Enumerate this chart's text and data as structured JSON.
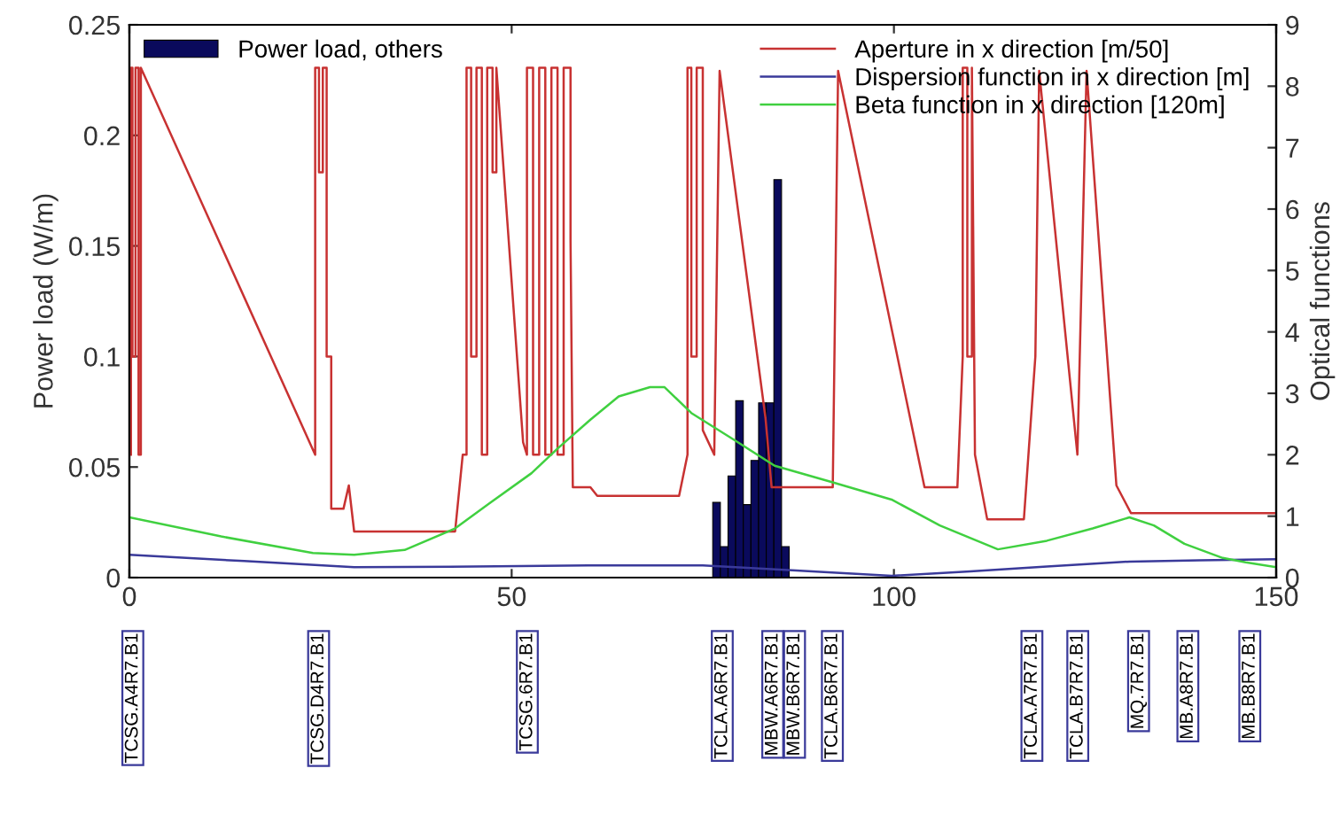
{
  "chart_data": {
    "type": "histogram",
    "ylabel": "Power load (W/m)",
    "y2label": "Optical functions",
    "bins": [
      76.3,
      77.3,
      78.3,
      79.3,
      80.3,
      81.3,
      82.3,
      83.3,
      84.3,
      85.3,
      86.3
    ],
    "xlim": [
      0,
      150
    ],
    "xticks": [
      0,
      50,
      100,
      150
    ],
    "ylim": [
      0,
      0.25
    ],
    "yticks": [
      0,
      0.05,
      0.1,
      0.15,
      0.2,
      0.25
    ],
    "y2lim": [
      0,
      9
    ],
    "y2ticks": [
      0,
      1,
      2,
      3,
      4,
      5,
      6,
      7,
      8,
      9
    ],
    "legend": "top right",
    "grid": false,
    "series": [
      {
        "name": "Power load, others",
        "color": "#0a0a5c",
        "values": [
          0.034,
          0.014,
          0.046,
          0.08,
          0.033,
          0.053,
          0.079,
          0.079,
          0.18,
          0.014
        ]
      },
      {
        "name": "Aperture in x direction [m/50]",
        "type": "line",
        "axis": "y2",
        "color": "#c83232",
        "x": [
          0.2,
          0.2,
          0.4,
          0.4,
          0.8,
          0.8,
          1.2,
          1.2,
          1.5,
          1.5,
          24.3,
          24.3,
          24.8,
          24.8,
          25.3,
          25.3,
          25.8,
          25.8,
          26.4,
          26.4,
          28.0,
          28.7,
          29.4,
          42.6,
          43.6,
          44.1,
          44.1,
          44.7,
          44.7,
          45.4,
          45.4,
          46.1,
          46.1,
          46.8,
          46.8,
          47.5,
          47.5,
          48.0,
          48.0,
          51.5,
          52.0,
          52.0,
          52.8,
          52.8,
          53.6,
          53.6,
          54.4,
          54.4,
          55.2,
          55.2,
          56.0,
          56.0,
          56.8,
          56.8,
          57.7,
          57.7,
          58.0,
          60.3,
          61.2,
          71.9,
          73.0,
          73.0,
          73.5,
          73.5,
          74.2,
          74.2,
          75.0,
          75.0,
          76.5,
          77.2,
          83.2,
          84.0,
          92.0,
          92.7,
          104.0,
          108.3,
          109.0,
          109.0,
          109.6,
          109.6,
          110.2,
          110.2,
          110.6,
          112.2,
          117.0,
          118.5,
          119.0,
          124.0,
          125.2,
          129.1,
          131.0,
          150
        ],
        "values": [
          2.0,
          8.3,
          8.3,
          3.6,
          3.6,
          8.3,
          8.3,
          2.0,
          2.0,
          8.3,
          2.0,
          8.3,
          8.3,
          6.6,
          6.6,
          8.3,
          8.3,
          3.6,
          3.6,
          1.12,
          1.12,
          1.5,
          0.75,
          0.75,
          2.0,
          2.0,
          8.3,
          8.3,
          3.6,
          3.6,
          8.3,
          8.3,
          2.0,
          2.0,
          8.3,
          8.3,
          6.6,
          6.6,
          8.3,
          2.2,
          2.0,
          8.3,
          8.3,
          2.0,
          2.0,
          8.3,
          8.3,
          2.0,
          2.0,
          8.3,
          8.3,
          2.0,
          2.0,
          8.3,
          8.3,
          5.5,
          1.47,
          1.47,
          1.33,
          1.33,
          2.0,
          8.3,
          8.3,
          3.6,
          3.6,
          8.3,
          8.3,
          2.4,
          2.0,
          8.25,
          2.6,
          1.47,
          1.47,
          8.25,
          1.47,
          1.47,
          3.6,
          8.3,
          8.3,
          3.6,
          3.6,
          8.3,
          2.0,
          0.95,
          0.95,
          3.6,
          8.25,
          2.0,
          8.25,
          1.5,
          1.05,
          1.05
        ]
      },
      {
        "name": "Dispersion function in x direction [m]",
        "type": "line",
        "axis": "y2",
        "color": "#3a3a9a",
        "x": [
          0,
          15,
          29.4,
          45,
          60,
          75,
          86.7,
          99.7,
          110,
          120,
          130.8,
          140,
          150
        ],
        "values": [
          0.37,
          0.27,
          0.17,
          0.18,
          0.2,
          0.2,
          0.12,
          0.03,
          0.1,
          0.18,
          0.26,
          0.28,
          0.3
        ]
      },
      {
        "name": "Beta function in x direction [120m]",
        "type": "line",
        "axis": "y2",
        "color": "#40d040",
        "x": [
          0,
          12,
          24,
          29.4,
          36,
          42.6,
          47,
          52.6,
          56,
          60.3,
          64,
          68.1,
          70,
          73.5,
          79,
          84.4,
          92,
          99.7,
          106,
          113.6,
          120,
          126,
          130.8,
          134,
          138,
          143,
          146,
          150
        ],
        "values": [
          0.98,
          0.67,
          0.4,
          0.37,
          0.45,
          0.8,
          1.2,
          1.7,
          2.1,
          2.57,
          2.95,
          3.1,
          3.1,
          2.68,
          2.25,
          1.82,
          1.55,
          1.27,
          0.85,
          0.46,
          0.6,
          0.8,
          0.98,
          0.85,
          0.55,
          0.32,
          0.25,
          0.17
        ]
      }
    ],
    "annotations": [
      "TCSG.A4R7.B1",
      "TCSG.D4R7.B1",
      "TCSG.6R7.B1",
      "TCLA.A6R7.B1",
      "MBW.A6R7.B1",
      "MBW.B6R7.B1",
      "TCLA.B6R7.B1",
      "TCLA.A7R7.B1",
      "TCLA.B7R7.B1",
      "MQ.7R7.B1",
      "MB.A8R7.B1",
      "MB.B8R7.B1"
    ]
  }
}
